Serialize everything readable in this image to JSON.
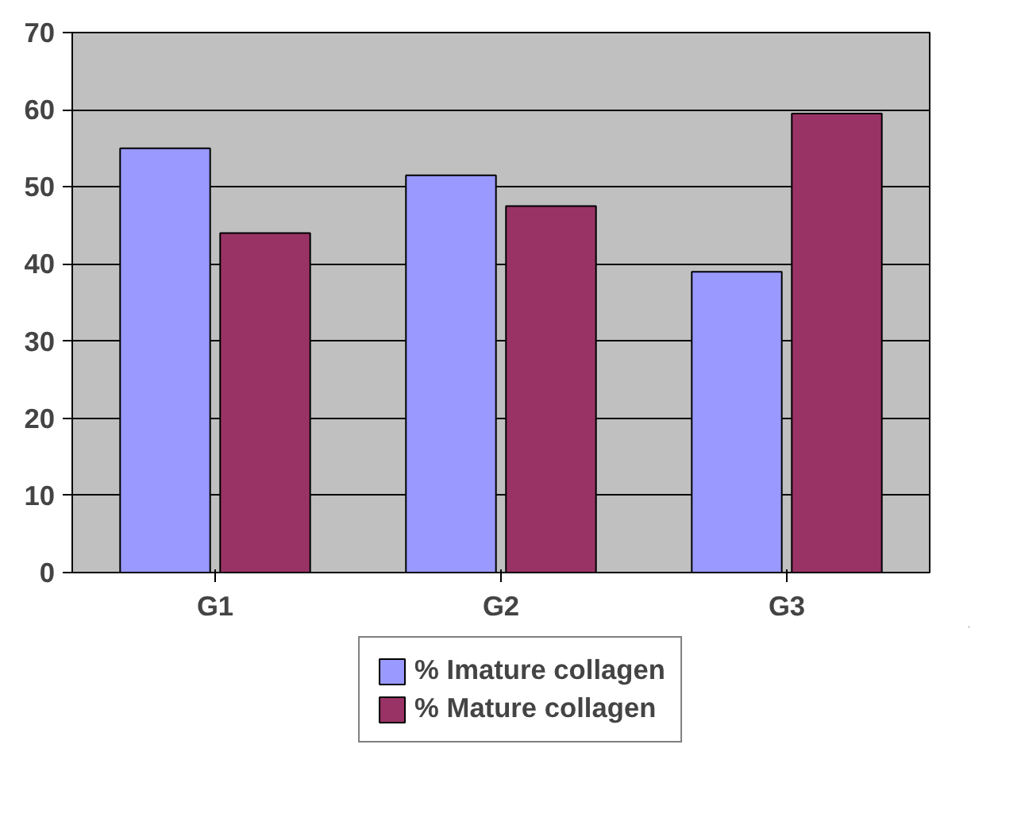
{
  "chart_data": {
    "type": "bar",
    "categories": [
      "G1",
      "G2",
      "G3"
    ],
    "series": [
      {
        "name": "% Imature collagen",
        "color": "#9999ff",
        "values": [
          55,
          51.5,
          39
        ]
      },
      {
        "name": "% Mature collagen",
        "color": "#993366",
        "values": [
          44,
          47.5,
          59.5
        ]
      }
    ],
    "ylim": [
      0,
      70
    ],
    "yticks": [
      0,
      10,
      20,
      30,
      40,
      50,
      60,
      70
    ],
    "grid": "y",
    "legend": "bottom"
  }
}
